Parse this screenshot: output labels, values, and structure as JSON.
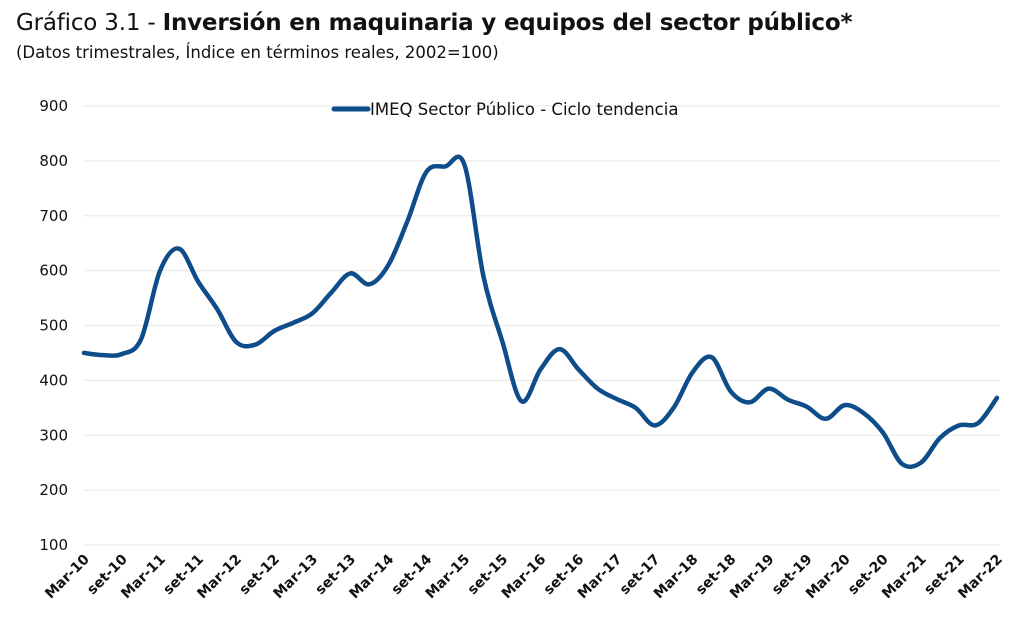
{
  "header": {
    "title_prefix": "Gráfico 3.1 - ",
    "title_bold": "Inversión en maquinaria y equipos del sector público*",
    "subtitle": "(Datos trimestrales, Índice en términos reales, 2002=100)"
  },
  "chart_data": {
    "type": "line",
    "title": "Gráfico 3.1 - Inversión en maquinaria y equipos del sector público*",
    "subtitle": "(Datos trimestrales, Índice en términos reales, 2002=100)",
    "xlabel": "",
    "ylabel": "",
    "ylim": [
      100,
      900
    ],
    "yticks": [
      "900",
      "800",
      "700",
      "600",
      "500",
      "400",
      "300",
      "200",
      "100"
    ],
    "ytick_values": [
      900,
      800,
      700,
      600,
      500,
      400,
      300,
      200,
      100
    ],
    "grid": true,
    "legend_position": "top-center",
    "x_tick_labels": [
      "Mar-10",
      "set-10",
      "Mar-11",
      "set-11",
      "Mar-12",
      "set-12",
      "Mar-13",
      "set-13",
      "Mar-14",
      "set-14",
      "Mar-15",
      "set-15",
      "Mar-16",
      "set-16",
      "Mar-17",
      "set-17",
      "Mar-18",
      "set-18",
      "Mar-19",
      "set-19",
      "Mar-20",
      "set-20",
      "Mar-21",
      "set-21",
      "Mar-22"
    ],
    "x_tick_every": 2,
    "series": [
      {
        "name": "IMEQ Sector Público - Ciclo tendencia",
        "color": "#0f4c8a",
        "frequency": "quarterly",
        "start": "Mar-10",
        "values": [
          450,
          446,
          448,
          475,
          600,
          640,
          580,
          530,
          470,
          465,
          490,
          505,
          522,
          560,
          595,
          575,
          610,
          690,
          780,
          790,
          793,
          590,
          470,
          362,
          420,
          457,
          420,
          385,
          366,
          350,
          318,
          350,
          415,
          442,
          380,
          360,
          385,
          365,
          352,
          330,
          355,
          340,
          305,
          248,
          250,
          295,
          318,
          322,
          368
        ]
      }
    ]
  },
  "colors": {
    "line": "#0f4c8a",
    "grid": "#ececec",
    "text": "#111111"
  }
}
